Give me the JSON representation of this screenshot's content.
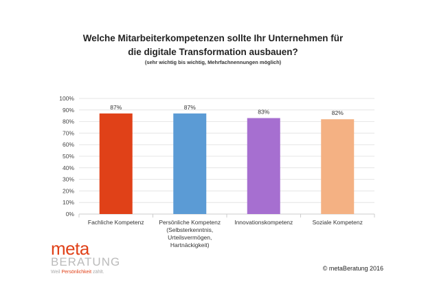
{
  "chart_data": {
    "type": "bar",
    "title": "Welche Mitarbeiterkompetenzen sollte Ihr Unternehmen für die digitale Transformation ausbauen?",
    "subtitle": "(sehr wichtig bis wichtig, Mehrfachnennungen möglich)",
    "categories": [
      [
        "Fachliche Kompetenz"
      ],
      [
        "Persönliche Kompetenz",
        "(Selbsterkenntnis,",
        "Urteilsvermögen,",
        "Hartnäckigkeit)"
      ],
      [
        "Innovationskompetenz"
      ],
      [
        "Soziale Kompetenz"
      ]
    ],
    "values": [
      87,
      87,
      83,
      82
    ],
    "labels": [
      "87%",
      "87%",
      "83%",
      "82%"
    ],
    "colors": [
      "#e04118",
      "#5b9bd5",
      "#a66fd0",
      "#f4b183"
    ],
    "ylim": [
      0,
      100
    ],
    "yticks": [
      "0%",
      "10%",
      "20%",
      "30%",
      "40%",
      "50%",
      "60%",
      "70%",
      "80%",
      "90%",
      "100%"
    ],
    "grid": true,
    "xlabel": "",
    "ylabel": ""
  },
  "title_line1": "Welche Mitarbeiterkompetenzen sollte Ihr Unternehmen für",
  "title_line2": "die digitale Transformation ausbauen?",
  "logo": {
    "meta": "meta",
    "beratung": "BERATUNG",
    "tag_pre": "Weil ",
    "tag_hl": "Persönlichkeit",
    "tag_post": " zählt."
  },
  "copyright": "© metaBeratung 2016"
}
